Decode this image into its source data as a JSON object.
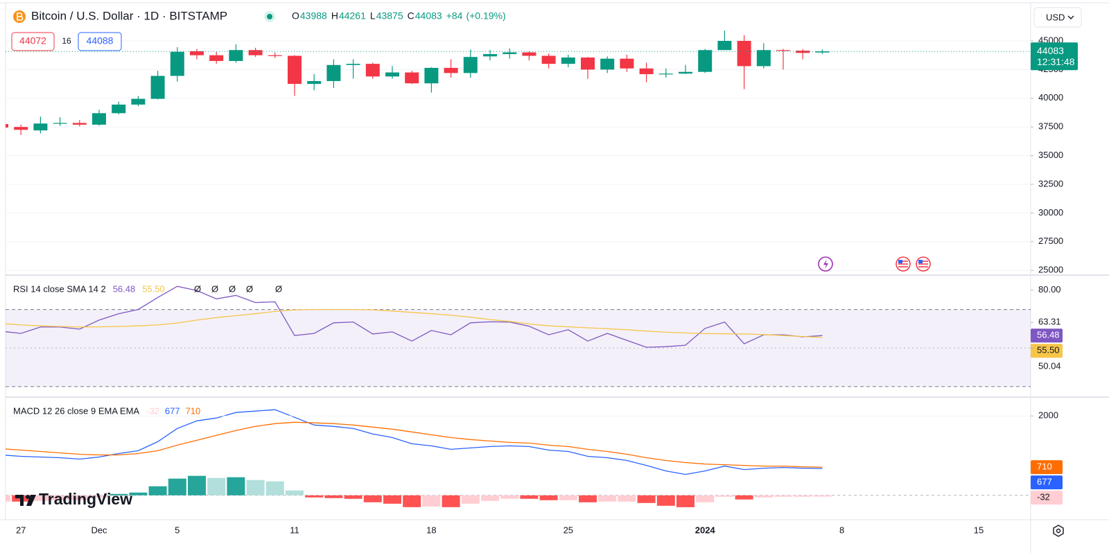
{
  "chart_data": [
    {
      "type": "candlestick",
      "title": "Bitcoin / U.S. Dollar · 1D · BITSTAMP",
      "categories": [
        null,
        "27",
        null,
        null,
        null,
        "Dec",
        null,
        null,
        null,
        "5",
        null,
        null,
        null,
        null,
        null,
        "11",
        null,
        null,
        null,
        null,
        null,
        null,
        "18",
        null,
        null,
        null,
        null,
        null,
        null,
        "25",
        null,
        null,
        null,
        null,
        null,
        null,
        "2024",
        null,
        null,
        null,
        null,
        null,
        null,
        "8",
        null,
        null,
        null,
        null,
        null,
        null,
        "15",
        null,
        null
      ],
      "open": [
        37750,
        37500,
        37200,
        37800,
        37850,
        37700,
        38700,
        39450,
        39950,
        41950,
        44100,
        43750,
        43250,
        44200,
        43750,
        43700,
        41250,
        41500,
        42900,
        43000,
        41900,
        42250,
        41300,
        42650,
        42200,
        43650,
        43850,
        44000,
        43700,
        43000,
        43550,
        42500,
        43450,
        42600,
        42100,
        42150,
        42300,
        44200,
        45000,
        42800,
        44200,
        44150,
        43988,
        null,
        null,
        null,
        null,
        null,
        null,
        null,
        null,
        null,
        null
      ],
      "high": [
        37800,
        37700,
        38400,
        38350,
        38100,
        39000,
        39700,
        40200,
        42400,
        44450,
        44300,
        44050,
        44700,
        44400,
        44000,
        43750,
        42100,
        43400,
        43400,
        43100,
        42800,
        42400,
        42700,
        43400,
        44250,
        44200,
        44350,
        44100,
        43900,
        43800,
        43600,
        43650,
        43800,
        43100,
        42600,
        42900,
        44300,
        45900,
        45500,
        44800,
        44300,
        44300,
        44261,
        null,
        null,
        null,
        null,
        null,
        null,
        null,
        null,
        null,
        null
      ],
      "low": [
        37400,
        36800,
        36950,
        37600,
        37550,
        37600,
        38600,
        39300,
        39900,
        41450,
        43400,
        43000,
        43100,
        43600,
        43500,
        40200,
        40700,
        40900,
        41700,
        41700,
        41700,
        41250,
        40500,
        41800,
        41800,
        43300,
        43450,
        43300,
        42600,
        42700,
        41700,
        42200,
        42300,
        41400,
        41800,
        42100,
        42200,
        44200,
        40800,
        42600,
        42500,
        43400,
        43875,
        null,
        null,
        null,
        null,
        null,
        null,
        null,
        null,
        null,
        null
      ],
      "close": [
        37450,
        37250,
        37800,
        37850,
        37700,
        38700,
        39450,
        39950,
        41950,
        44050,
        43750,
        43250,
        44200,
        43750,
        43700,
        41250,
        41500,
        42900,
        43000,
        41900,
        42250,
        41300,
        42650,
        42200,
        43600,
        43850,
        44000,
        43700,
        43000,
        43550,
        42500,
        43450,
        42600,
        42100,
        42150,
        42300,
        44200,
        45000,
        42800,
        44200,
        44150,
        43950,
        44083,
        null,
        null,
        null,
        null,
        null,
        null,
        null,
        null,
        null,
        null
      ],
      "up_color": "#089981",
      "down_color": "#f23645",
      "ylim": [
        24710,
        48080
      ],
      "yticks": [
        25000,
        27500,
        30000,
        32500,
        35000,
        37500,
        40000,
        42500,
        45000
      ],
      "grid": true,
      "ohlc_letters": [
        "O",
        "H",
        "L",
        "C"
      ],
      "change": {
        "value": 84,
        "label": "+84"
      },
      "change_percent": {
        "value": 0.19,
        "label": "(+0.19%)"
      },
      "quote": {
        "sell": 44072,
        "spread": 16,
        "buy": 44088
      },
      "currency": "USD",
      "countdown": "12:31:48",
      "logo": "TradingView"
    },
    {
      "type": "line",
      "title": "RSI 14 close SMA 14 2",
      "series": [
        {
          "color": "#7e57c2",
          "values": [
            58.7,
            57.6,
            60.9,
            60.9,
            59.8,
            64.5,
            67.8,
            70.0,
            76.2,
            82.0,
            79.8,
            75.5,
            77.3,
            73.6,
            74.0,
            56.5,
            57.6,
            63.1,
            63.5,
            57.3,
            58.4,
            53.6,
            59.1,
            56.9,
            63.1,
            63.6,
            63.5,
            61.3,
            56.9,
            59.5,
            53.6,
            57.6,
            54.0,
            50.4,
            50.7,
            51.5,
            60.2,
            63.5,
            52.2,
            56.9,
            56.9,
            55.8,
            56.48,
            null,
            null,
            null,
            null,
            null,
            null,
            null,
            null,
            null,
            null
          ]
        },
        {
          "color": "#f7c548",
          "values": [
            62.7,
            62.0,
            61.5,
            61.2,
            60.9,
            61.0,
            61.2,
            61.5,
            62.0,
            63.0,
            64.5,
            65.8,
            66.8,
            67.8,
            69.0,
            69.8,
            70.0,
            70.0,
            70.0,
            69.8,
            69.2,
            68.5,
            67.8,
            67.0,
            66.0,
            64.8,
            63.8,
            62.5,
            61.5,
            61.0,
            60.5,
            60.0,
            59.5,
            58.8,
            58.2,
            57.8,
            57.5,
            57.4,
            57.3,
            57.0,
            56.5,
            56.0,
            55.5,
            null,
            null,
            null,
            null,
            null,
            null,
            null,
            null,
            null,
            null
          ],
          "value_labels": [
            null,
            null,
            null,
            null,
            null,
            null,
            null,
            null,
            null,
            null,
            null,
            null,
            null,
            null,
            null,
            null,
            null,
            null,
            null,
            null,
            null,
            null,
            null,
            null,
            null,
            null,
            null,
            null,
            null,
            null,
            null,
            null,
            null,
            null,
            null,
            null,
            null,
            null,
            null,
            null,
            null,
            null,
            "55.50",
            null,
            null,
            null,
            null,
            null,
            null,
            null,
            null,
            null,
            null
          ]
        }
      ],
      "ylim": [
        25.3,
        87.1
      ],
      "yticks": [
        {
          "value": 80,
          "label": "80.00"
        },
        {
          "value": 63.31,
          "label": "63.31"
        },
        {
          "value": 50.04,
          "label": "50.04"
        }
      ],
      "bands": [
        70,
        50,
        30
      ],
      "band_fill": "#7e57c2",
      "empty_values": [
        "Ø",
        "Ø",
        "Ø",
        "Ø",
        "Ø"
      ]
    },
    {
      "type": "macd",
      "title": "MACD 12 26 close 9 EMA EMA",
      "histogram": {
        "values": [
          -157,
          -158,
          -140,
          -123,
          -123,
          -53,
          35,
          70,
          228,
          421,
          491,
          438,
          456,
          386,
          351,
          123,
          -53,
          -70,
          -88,
          -175,
          -211,
          -298,
          -280,
          -298,
          -211,
          -140,
          -87,
          -88,
          -123,
          -123,
          -176,
          -158,
          -158,
          -193,
          -263,
          -299,
          -175,
          -35,
          -105,
          -53,
          -35,
          -35,
          -32,
          null,
          null,
          null,
          null,
          null,
          null,
          null,
          null,
          null,
          null
        ],
        "colors": [
          "#26a69a",
          "#b2dfdb",
          "#ffcdd2",
          "#ff5252"
        ]
      },
      "series": [
        {
          "color": "#2962ff",
          "values": [
            1018,
            982,
            965,
            947,
            912,
            965,
            1053,
            1123,
            1351,
            1684,
            1877,
            1947,
            2088,
            2123,
            2158,
            1965,
            1772,
            1737,
            1684,
            1544,
            1456,
            1298,
            1246,
            1158,
            1193,
            1228,
            1246,
            1228,
            1140,
            1105,
            982,
            947,
            877,
            754,
            614,
            526,
            614,
            737,
            649,
            684,
            702,
            684,
            677,
            null,
            null,
            null,
            null,
            null,
            null,
            null,
            null,
            null,
            null
          ]
        },
        {
          "color": "#ff6d00",
          "values": [
            1175,
            1140,
            1105,
            1070,
            1035,
            1018,
            1018,
            1053,
            1123,
            1263,
            1386,
            1509,
            1632,
            1737,
            1807,
            1842,
            1825,
            1807,
            1772,
            1719,
            1667,
            1596,
            1526,
            1456,
            1404,
            1368,
            1333,
            1316,
            1263,
            1228,
            1158,
            1105,
            1035,
            947,
            877,
            825,
            789,
            772,
            754,
            737,
            737,
            719,
            710,
            null,
            null,
            null,
            null,
            null,
            null,
            null,
            null,
            null,
            null
          ]
        }
      ],
      "ylim": [
        -580,
        2440
      ],
      "yticks": [
        2000
      ],
      "grid": true
    }
  ]
}
